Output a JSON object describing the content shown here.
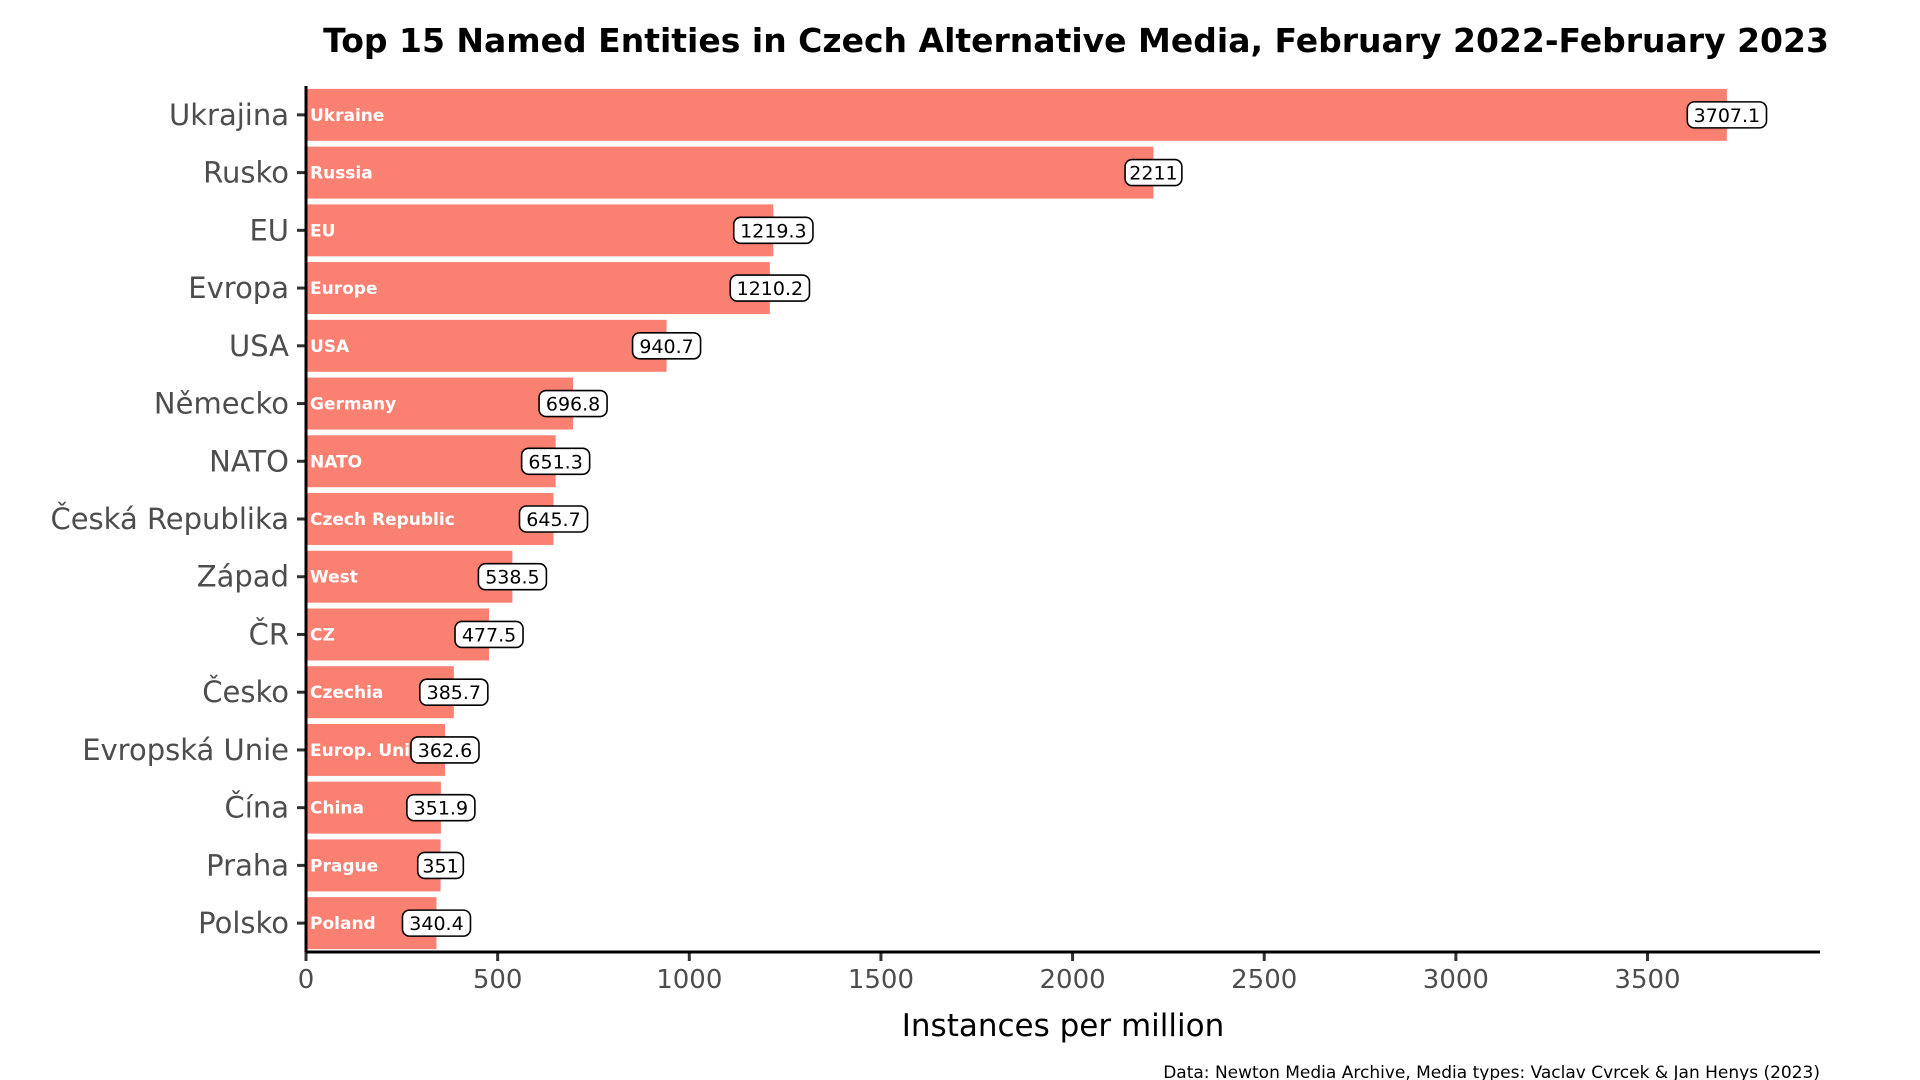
{
  "chart_data": {
    "type": "bar",
    "orientation": "horizontal",
    "title": "Top 15 Named Entities in Czech Alternative Media, February 2022-February 2023",
    "xlabel": "Instances per million",
    "ylabel": "",
    "caption": "Data: Newton Media Archive, Media types: Vaclav Cvrcek & Jan Henys (2023)",
    "categories": [
      "Ukrajina",
      "Rusko",
      "EU",
      "Evropa",
      "USA",
      "Německo",
      "NATO",
      "Česká Republika",
      "Západ",
      "ČR",
      "Česko",
      "Evropská Unie",
      "Čína",
      "Praha",
      "Polsko"
    ],
    "bar_labels": [
      "Ukraine",
      "Russia",
      "EU",
      "Europe",
      "USA",
      "Germany",
      "NATO",
      "Czech Republic",
      "West",
      "CZ",
      "Czechia",
      "Europ. Union",
      "China",
      "Prague",
      "Poland"
    ],
    "values": [
      3707.1,
      2211,
      1219.3,
      1210.2,
      940.7,
      696.8,
      651.3,
      645.7,
      538.5,
      477.5,
      385.7,
      362.6,
      351.9,
      351,
      340.4
    ],
    "value_labels": [
      "3707.1",
      "2211",
      "1219.3",
      "1210.2",
      "940.7",
      "696.8",
      "651.3",
      "645.7",
      "538.5",
      "477.5",
      "385.7",
      "362.6",
      "351.9",
      "351",
      "340.4"
    ],
    "x_ticks": [
      0,
      500,
      1000,
      1500,
      2000,
      2500,
      3000,
      3500
    ],
    "xlim": [
      0,
      3950
    ],
    "bar_color": "#FA8072",
    "grid": false,
    "legend": "none"
  }
}
